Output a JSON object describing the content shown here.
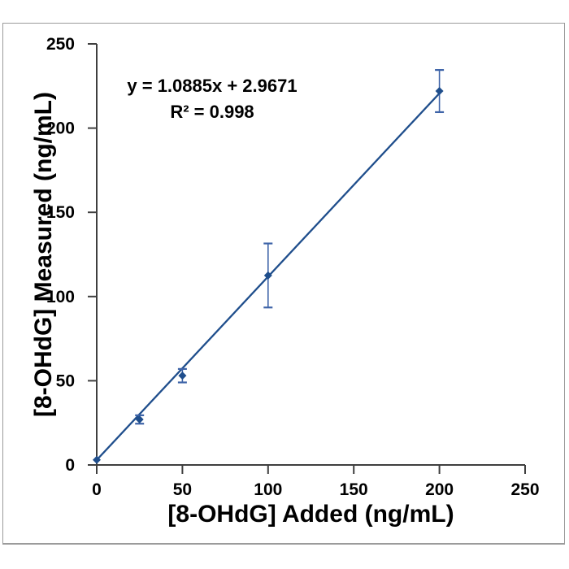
{
  "chart_data": {
    "type": "scatter",
    "title": "",
    "xlabel": "[8-OHdG] Added (ng/mL)",
    "ylabel": "[8-OHdG] Measured (ng/mL)",
    "xlim": [
      0,
      250
    ],
    "ylim": [
      0,
      250
    ],
    "xticks": [
      0,
      50,
      100,
      150,
      200,
      250
    ],
    "yticks": [
      0,
      50,
      100,
      150,
      200,
      250
    ],
    "grid": false,
    "legend": false,
    "marker": "diamond",
    "points": [
      {
        "x": 0,
        "y": 3,
        "err": 0
      },
      {
        "x": 25,
        "y": 27,
        "err": 2.5
      },
      {
        "x": 50,
        "y": 53,
        "err": 4
      },
      {
        "x": 100,
        "y": 112.5,
        "err": 19
      },
      {
        "x": 200,
        "y": 222,
        "err": 12.5
      }
    ],
    "trendline": {
      "slope": 1.0885,
      "intercept": 2.9671,
      "x_start": 0,
      "x_end": 200,
      "equation": "y = 1.0885x + 2.9671",
      "r_squared": "R² = 0.998"
    },
    "colors": {
      "series": "#1F4E8C",
      "error_bar": "#3E64A8",
      "axis": "#3F3F3F",
      "text": "#000000",
      "frame_border": "#9B9B9B"
    }
  }
}
